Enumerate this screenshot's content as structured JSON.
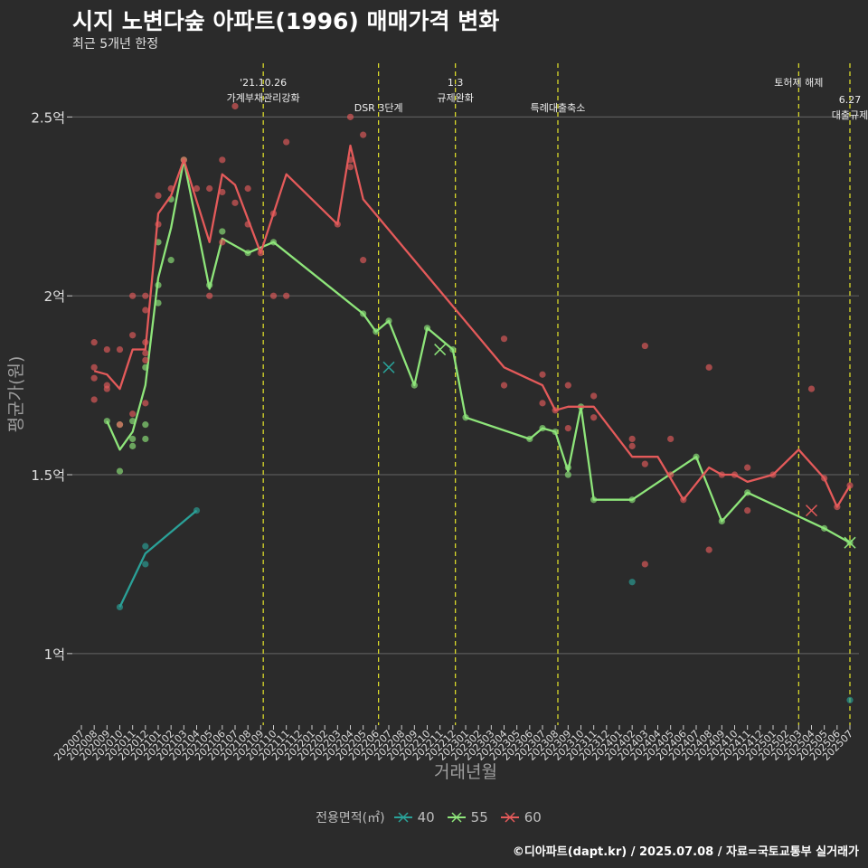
{
  "title": "시지 노변다숲 아파트(1996) 매매가격 변화",
  "subtitle": "최근 5개년 한정",
  "caption": "©디아파트(dapt.kr) / 2025.07.08 / 자료=국토교통부 실거래가",
  "legend": {
    "title": "전용면적(㎡)",
    "items": [
      {
        "label": "40",
        "color": "#2aa198"
      },
      {
        "label": "55",
        "color": "#8ee57a"
      },
      {
        "label": "60",
        "color": "#e45a5a"
      }
    ]
  },
  "chart_data": {
    "type": "line",
    "xlabel": "거래년월",
    "ylabel": "평균가(원)",
    "ylim": [
      0.8,
      2.65
    ],
    "yticks": [
      {
        "v": 1.0,
        "label": "1억"
      },
      {
        "v": 1.5,
        "label": "1.5억"
      },
      {
        "v": 2.0,
        "label": "2억"
      },
      {
        "v": 2.5,
        "label": "2.5억"
      }
    ],
    "categories": [
      "202007",
      "202008",
      "202009",
      "202010",
      "202011",
      "202012",
      "202101",
      "202102",
      "202103",
      "202104",
      "202105",
      "202106",
      "202107",
      "202108",
      "202109",
      "202110",
      "202111",
      "202112",
      "202201",
      "202202",
      "202203",
      "202204",
      "202205",
      "202206",
      "202207",
      "202208",
      "202209",
      "202210",
      "202211",
      "202212",
      "202301",
      "202302",
      "202303",
      "202304",
      "202305",
      "202306",
      "202307",
      "202308",
      "202309",
      "202310",
      "202311",
      "202312",
      "202401",
      "202402",
      "202403",
      "202404",
      "202405",
      "202406",
      "202407",
      "202408",
      "202409",
      "202410",
      "202411",
      "202412",
      "202501",
      "202502",
      "202503",
      "202504",
      "202505",
      "202506",
      "202507"
    ],
    "tick_labels": [
      "202007",
      "202008",
      "202009",
      "202010",
      "202011",
      "202012",
      "202101",
      "202102",
      "202103",
      "202104",
      "202105",
      "202106",
      "202107",
      "202108",
      "202109",
      "202110",
      "202111",
      "202112",
      "202201",
      "202202",
      "202203",
      "202204",
      "202205",
      "202206",
      "202207",
      "202208",
      "202209",
      "202210",
      "202211",
      "202212",
      "202301",
      "202302",
      "202303",
      "202304",
      "202305",
      "202306",
      "202307",
      "202308",
      "202309",
      "202310",
      "202311",
      "202312",
      "202401",
      "202402",
      "202403",
      "202404",
      "202405",
      "202406",
      "202407",
      "202408",
      "202409",
      "202410",
      "202411",
      "202412",
      "202501",
      "202502",
      "202503",
      "202504",
      "202505",
      "202506",
      "202507"
    ],
    "events": [
      {
        "t": 14.2,
        "lines": [
          "'21.10.26",
          "가계부채관리강화"
        ],
        "level": 0
      },
      {
        "t": 23.2,
        "lines": [
          "DSR 3단계"
        ],
        "level": 1
      },
      {
        "t": 29.2,
        "lines": [
          "1.3",
          "규제완화"
        ],
        "level": 0
      },
      {
        "t": 37.2,
        "lines": [
          "특례대출축소"
        ],
        "level": 1
      },
      {
        "t": 56.0,
        "lines": [
          "토허제 해제"
        ],
        "level": 0
      },
      {
        "t": 60.0,
        "lines": [
          "6.27",
          "대출규제"
        ],
        "level": 0.6
      }
    ],
    "series": [
      {
        "name": "40",
        "color": "#2aa198",
        "line": [
          [
            3,
            1.13
          ],
          [
            5,
            1.28
          ],
          [
            9,
            1.4
          ]
        ],
        "points": [
          [
            3,
            1.13
          ],
          [
            5,
            1.3
          ],
          [
            5,
            1.25
          ],
          [
            9,
            1.4
          ],
          [
            43,
            1.2
          ],
          [
            60,
            0.87
          ]
        ],
        "crosses": [
          [
            24,
            1.8
          ]
        ]
      },
      {
        "name": "55",
        "color": "#8ee57a",
        "line": [
          [
            2,
            1.65
          ],
          [
            3,
            1.57
          ],
          [
            4,
            1.62
          ],
          [
            5,
            1.75
          ],
          [
            6,
            2.05
          ],
          [
            7,
            2.19
          ],
          [
            8,
            2.38
          ],
          [
            10,
            2.02
          ],
          [
            11,
            2.16
          ],
          [
            13,
            2.12
          ],
          [
            15,
            2.15
          ],
          [
            22,
            1.95
          ],
          [
            23,
            1.9
          ],
          [
            24,
            1.93
          ],
          [
            26,
            1.75
          ],
          [
            27,
            1.91
          ],
          [
            29,
            1.85
          ],
          [
            30,
            1.66
          ],
          [
            35,
            1.6
          ],
          [
            36,
            1.63
          ],
          [
            37,
            1.62
          ],
          [
            38,
            1.51
          ],
          [
            39,
            1.69
          ],
          [
            40,
            1.43
          ],
          [
            43,
            1.43
          ],
          [
            48,
            1.55
          ],
          [
            50,
            1.37
          ],
          [
            52,
            1.45
          ],
          [
            58,
            1.35
          ],
          [
            60,
            1.31
          ]
        ],
        "points": [
          [
            2,
            1.65
          ],
          [
            3,
            1.51
          ],
          [
            3,
            1.64
          ],
          [
            4,
            1.58
          ],
          [
            4,
            1.6
          ],
          [
            4,
            1.65
          ],
          [
            5,
            1.8
          ],
          [
            5,
            1.64
          ],
          [
            5,
            1.6
          ],
          [
            6,
            2.03
          ],
          [
            6,
            1.98
          ],
          [
            6,
            2.15
          ],
          [
            7,
            2.27
          ],
          [
            7,
            2.1
          ],
          [
            8,
            2.38
          ],
          [
            10,
            2.03
          ],
          [
            11,
            2.18
          ],
          [
            13,
            2.12
          ],
          [
            15,
            2.15
          ],
          [
            22,
            1.95
          ],
          [
            23,
            1.9
          ],
          [
            24,
            1.93
          ],
          [
            26,
            1.75
          ],
          [
            27,
            1.91
          ],
          [
            29,
            1.85
          ],
          [
            30,
            1.66
          ],
          [
            35,
            1.6
          ],
          [
            36,
            1.63
          ],
          [
            37,
            1.62
          ],
          [
            38,
            1.5
          ],
          [
            38,
            1.52
          ],
          [
            39,
            1.69
          ],
          [
            40,
            1.43
          ],
          [
            43,
            1.43
          ],
          [
            48,
            1.55
          ],
          [
            50,
            1.37
          ],
          [
            52,
            1.45
          ],
          [
            58,
            1.35
          ],
          [
            60,
            1.31
          ]
        ],
        "crosses": [
          [
            28,
            1.85
          ],
          [
            60,
            1.31
          ]
        ]
      },
      {
        "name": "60",
        "color": "#e45a5a",
        "line": [
          [
            1,
            1.79
          ],
          [
            2,
            1.78
          ],
          [
            3,
            1.74
          ],
          [
            4,
            1.85
          ],
          [
            5,
            1.85
          ],
          [
            6,
            2.23
          ],
          [
            7,
            2.28
          ],
          [
            8,
            2.38
          ],
          [
            10,
            2.15
          ],
          [
            11,
            2.34
          ],
          [
            12,
            2.31
          ],
          [
            14,
            2.12
          ],
          [
            16,
            2.34
          ],
          [
            20,
            2.2
          ],
          [
            21,
            2.42
          ],
          [
            22,
            2.27
          ],
          [
            33,
            1.8
          ],
          [
            36,
            1.75
          ],
          [
            37,
            1.68
          ],
          [
            38,
            1.69
          ],
          [
            40,
            1.69
          ],
          [
            43,
            1.55
          ],
          [
            45,
            1.55
          ],
          [
            47,
            1.43
          ],
          [
            49,
            1.52
          ],
          [
            50,
            1.5
          ],
          [
            51,
            1.5
          ],
          [
            52,
            1.48
          ],
          [
            54,
            1.5
          ],
          [
            56,
            1.57
          ],
          [
            58,
            1.49
          ],
          [
            59,
            1.41
          ],
          [
            60,
            1.47
          ]
        ],
        "points": [
          [
            1,
            1.87
          ],
          [
            1,
            1.8
          ],
          [
            1,
            1.77
          ],
          [
            1,
            1.71
          ],
          [
            2,
            1.85
          ],
          [
            2,
            1.75
          ],
          [
            2,
            1.74
          ],
          [
            3,
            1.85
          ],
          [
            3,
            1.64
          ],
          [
            4,
            2.0
          ],
          [
            4,
            1.89
          ],
          [
            4,
            1.67
          ],
          [
            5,
            2.0
          ],
          [
            5,
            1.96
          ],
          [
            5,
            1.87
          ],
          [
            5,
            1.84
          ],
          [
            5,
            1.82
          ],
          [
            5,
            1.7
          ],
          [
            6,
            2.28
          ],
          [
            6,
            2.2
          ],
          [
            7,
            2.3
          ],
          [
            8,
            2.38
          ],
          [
            9,
            2.3
          ],
          [
            10,
            2.3
          ],
          [
            10,
            2.0
          ],
          [
            11,
            2.38
          ],
          [
            11,
            2.29
          ],
          [
            11,
            2.15
          ],
          [
            12,
            2.53
          ],
          [
            12,
            2.26
          ],
          [
            13,
            2.3
          ],
          [
            13,
            2.2
          ],
          [
            14,
            2.12
          ],
          [
            15,
            2.23
          ],
          [
            15,
            2.0
          ],
          [
            16,
            2.43
          ],
          [
            16,
            2.0
          ],
          [
            20,
            2.2
          ],
          [
            21,
            2.5
          ],
          [
            21,
            2.38
          ],
          [
            21,
            2.36
          ],
          [
            22,
            2.45
          ],
          [
            22,
            2.1
          ],
          [
            33,
            1.88
          ],
          [
            33,
            1.75
          ],
          [
            36,
            1.78
          ],
          [
            36,
            1.7
          ],
          [
            37,
            1.68
          ],
          [
            38,
            1.75
          ],
          [
            38,
            1.63
          ],
          [
            40,
            1.72
          ],
          [
            40,
            1.66
          ],
          [
            43,
            1.6
          ],
          [
            43,
            1.58
          ],
          [
            44,
            1.86
          ],
          [
            44,
            1.53
          ],
          [
            44,
            1.25
          ],
          [
            46,
            1.6
          ],
          [
            46,
            1.5
          ],
          [
            47,
            1.43
          ],
          [
            49,
            1.8
          ],
          [
            49,
            1.29
          ],
          [
            50,
            1.5
          ],
          [
            51,
            1.5
          ],
          [
            52,
            1.52
          ],
          [
            52,
            1.4
          ],
          [
            54,
            1.5
          ],
          [
            57,
            1.74
          ],
          [
            58,
            1.49
          ],
          [
            59,
            1.41
          ],
          [
            60,
            1.47
          ]
        ],
        "crosses": [
          [
            57,
            1.4
          ]
        ]
      }
    ]
  }
}
